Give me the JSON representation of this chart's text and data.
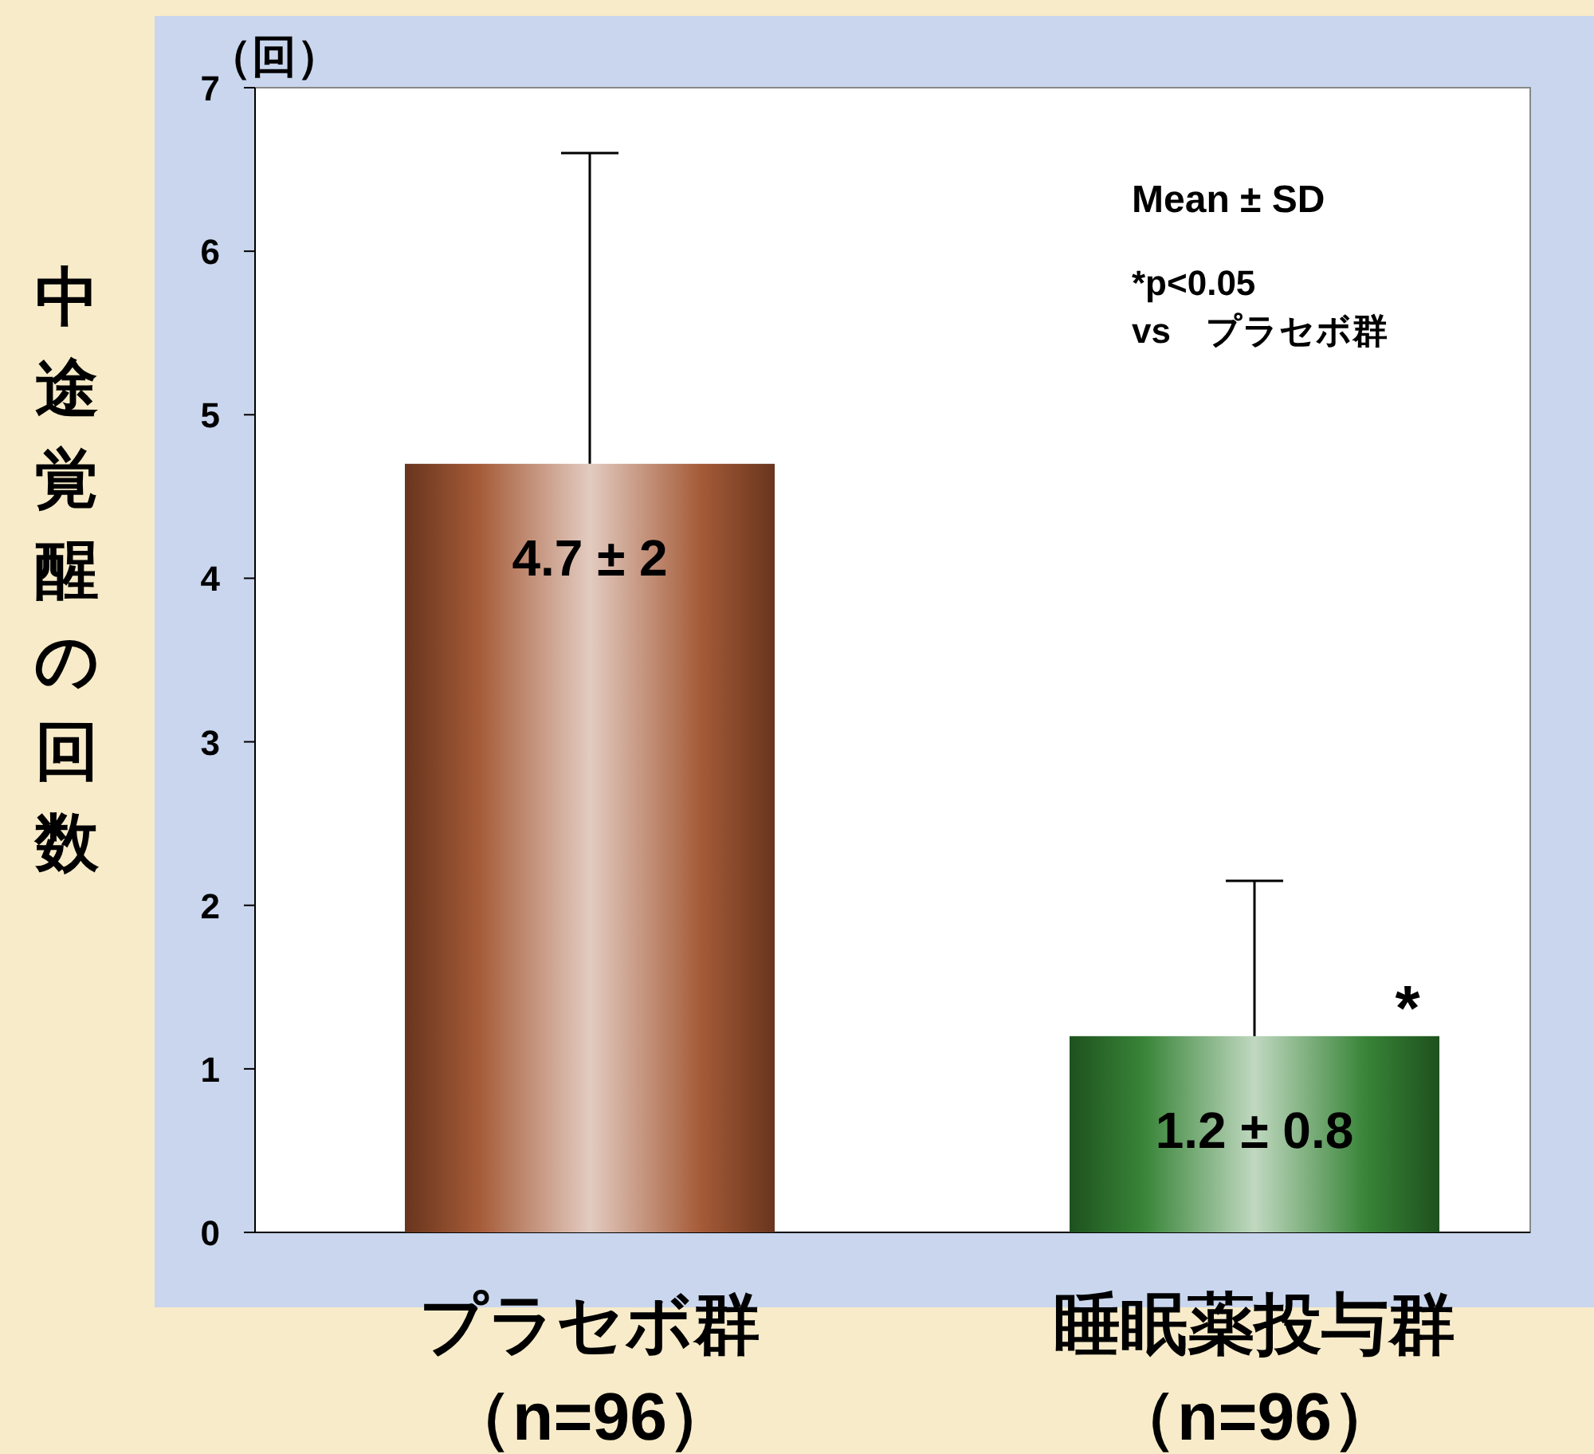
{
  "chart_data": {
    "type": "bar",
    "ylabel": "中途覚醒の回数",
    "categories": [
      "プラセボ群（n=96）",
      "睡眠薬投与群（n=96）"
    ],
    "values": [
      4.7,
      1.2
    ],
    "colors": [
      "#a0522d",
      "#2e7d2e"
    ],
    "errors": [
      [
        4.7,
        6.6
      ],
      [
        1.2,
        2.15
      ]
    ],
    "value_labels": [
      "4.7 ± 2",
      "1.2 ± 0.8"
    ],
    "ylim": [
      0,
      7
    ],
    "yticks": [
      0,
      1,
      2,
      3,
      4,
      5,
      6,
      7
    ],
    "grid": false,
    "annotations": [
      "（回）",
      "Mean ± SD",
      "*p<0.05\nvs　プラセボ群",
      {
        "text": "*",
        "x": "睡眠薬投与群（n=96）",
        "y": 1.2
      }
    ]
  }
}
